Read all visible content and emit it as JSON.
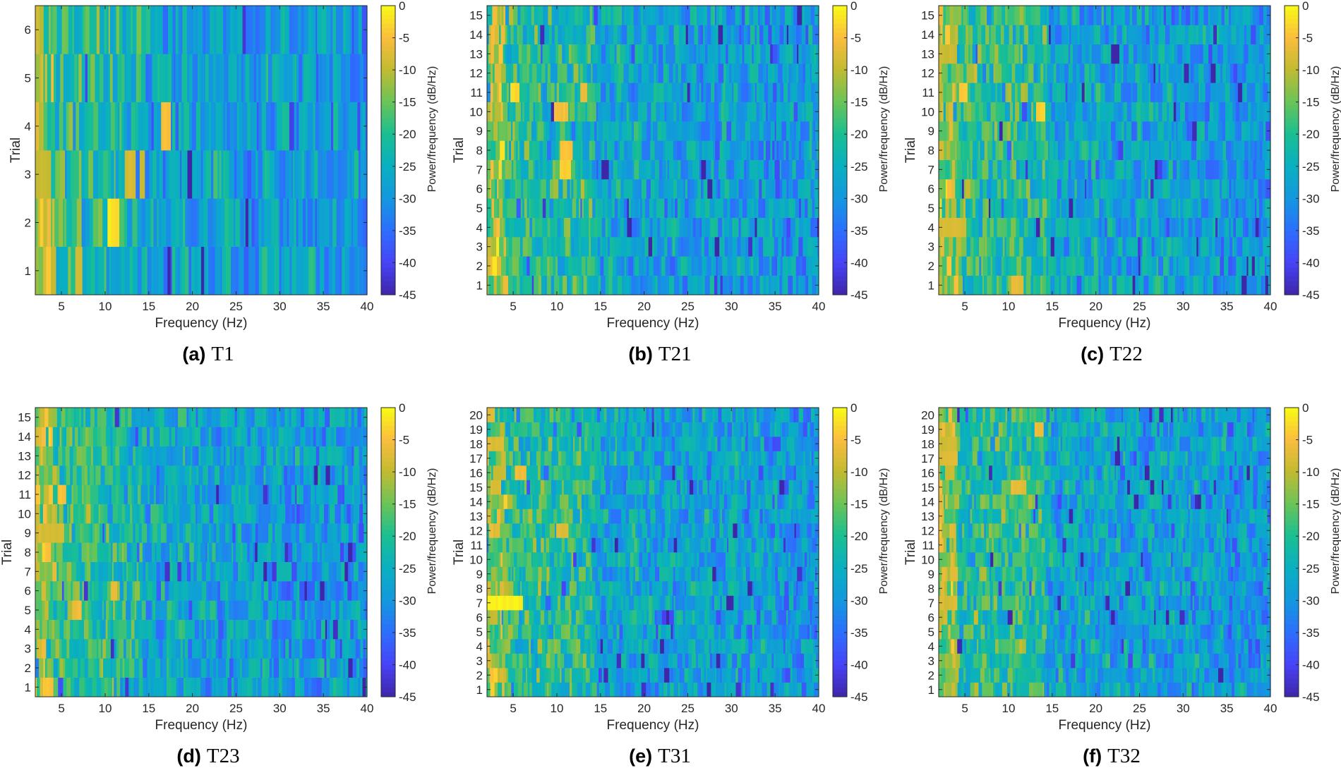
{
  "figure": {
    "colorbar_label": "Power/frequency (dB/Hz)",
    "colorbar_ticks": [
      "0",
      "-5",
      "-10",
      "-15",
      "-20",
      "-25",
      "-30",
      "-35",
      "-40",
      "-45"
    ],
    "colormap_stops": [
      "#3e26a8",
      "#4743f8",
      "#2d6ffe",
      "#1398de",
      "#09b0c1",
      "#19bf92",
      "#6ac457",
      "#c1bb31",
      "#fbbd3d",
      "#f9fb15"
    ]
  },
  "chart_data": [
    {
      "type": "heatmap",
      "panel": "(a)",
      "caption": "T1",
      "xlabel": "Frequency (Hz)",
      "ylabel": "Trial",
      "xlim": [
        2,
        40
      ],
      "xticks": [
        "5",
        "10",
        "15",
        "20",
        "25",
        "30",
        "35",
        "40"
      ],
      "trials": 6,
      "yticks": [
        "1",
        "2",
        "3",
        "4",
        "5",
        "6"
      ],
      "clim": [
        -45,
        0
      ],
      "hotspots": [
        {
          "trial": 3,
          "freq": 2.5,
          "width": 2.5,
          "value": -9
        },
        {
          "trial": 2,
          "freq": 11,
          "width": 0.8,
          "value": -2
        },
        {
          "trial": 4,
          "freq": 16.8,
          "width": 0.6,
          "value": -5
        },
        {
          "trial": 1,
          "freq": 7,
          "width": 0.6,
          "value": -9
        },
        {
          "trial": 3,
          "freq": 13,
          "width": 0.8,
          "value": -8
        }
      ]
    },
    {
      "type": "heatmap",
      "panel": "(b)",
      "caption": "T21",
      "xlabel": "Frequency (Hz)",
      "ylabel": "Trial",
      "xlim": [
        2,
        40
      ],
      "xticks": [
        "5",
        "10",
        "15",
        "20",
        "25",
        "30",
        "35",
        "40"
      ],
      "trials": 15,
      "yticks": [
        "1",
        "2",
        "3",
        "4",
        "5",
        "6",
        "7",
        "8",
        "9",
        "10",
        "11",
        "12",
        "13",
        "14",
        "15"
      ],
      "clim": [
        -45,
        0
      ],
      "hotspots": [
        {
          "trial": 10,
          "freq": 10.5,
          "width": 1.6,
          "value": -5
        },
        {
          "trial": 11,
          "freq": 5.2,
          "width": 0.6,
          "value": -3
        },
        {
          "trial": 7,
          "freq": 11,
          "width": 0.8,
          "value": -4
        },
        {
          "trial": 8,
          "freq": 11,
          "width": 0.8,
          "value": -4
        },
        {
          "trial": 11,
          "freq": 13,
          "width": 0.6,
          "value": -6
        }
      ]
    },
    {
      "type": "heatmap",
      "panel": "(c)",
      "caption": "T22",
      "xlabel": "Frequency (Hz)",
      "ylabel": "Trial",
      "xlim": [
        2,
        40
      ],
      "xticks": [
        "5",
        "10",
        "15",
        "20",
        "25",
        "30",
        "35",
        "40"
      ],
      "trials": 15,
      "yticks": [
        "1",
        "2",
        "3",
        "4",
        "5",
        "6",
        "7",
        "8",
        "9",
        "10",
        "11",
        "12",
        "13",
        "14",
        "15"
      ],
      "clim": [
        -45,
        0
      ],
      "hotspots": [
        {
          "trial": 4,
          "freq": 3.5,
          "width": 3,
          "value": -8
        },
        {
          "trial": 13,
          "freq": 3,
          "width": 2,
          "value": -9
        },
        {
          "trial": 11,
          "freq": 5,
          "width": 0.6,
          "value": -4
        },
        {
          "trial": 1,
          "freq": 11,
          "width": 1.2,
          "value": -7
        },
        {
          "trial": 10,
          "freq": 13.5,
          "width": 0.6,
          "value": -4
        }
      ]
    },
    {
      "type": "heatmap",
      "panel": "(d)",
      "caption": "T23",
      "xlabel": "Frequency (Hz)",
      "ylabel": "Trial",
      "xlim": [
        2,
        40
      ],
      "xticks": [
        "5",
        "10",
        "15",
        "20",
        "25",
        "30",
        "35",
        "40"
      ],
      "trials": 15,
      "yticks": [
        "1",
        "2",
        "3",
        "4",
        "5",
        "6",
        "7",
        "8",
        "9",
        "10",
        "11",
        "12",
        "13",
        "14",
        "15"
      ],
      "clim": [
        -45,
        0
      ],
      "hotspots": [
        {
          "trial": 9,
          "freq": 3.5,
          "width": 3,
          "value": -8
        },
        {
          "trial": 1,
          "freq": 3.5,
          "width": 1,
          "value": -5
        },
        {
          "trial": 11,
          "freq": 5,
          "width": 0.6,
          "value": -5
        },
        {
          "trial": 6,
          "freq": 11,
          "width": 0.6,
          "value": -6
        },
        {
          "trial": 5,
          "freq": 7,
          "width": 0.6,
          "value": -6
        }
      ]
    },
    {
      "type": "heatmap",
      "panel": "(e)",
      "caption": "T31",
      "xlabel": "Frequency (Hz)",
      "ylabel": "Trial",
      "xlim": [
        2,
        40
      ],
      "xticks": [
        "5",
        "10",
        "15",
        "20",
        "25",
        "30",
        "35",
        "40"
      ],
      "trials": 20,
      "yticks": [
        "1",
        "2",
        "3",
        "4",
        "5",
        "6",
        "7",
        "8",
        "9",
        "10",
        "11",
        "12",
        "13",
        "14",
        "15",
        "16",
        "17",
        "18",
        "19",
        "20"
      ],
      "clim": [
        -45,
        0
      ],
      "hotspots": [
        {
          "trial": 7,
          "freq": 4,
          "width": 4,
          "value": -1
        },
        {
          "trial": 18,
          "freq": 3,
          "width": 1.5,
          "value": -8
        },
        {
          "trial": 12,
          "freq": 10.5,
          "width": 1,
          "value": -7
        },
        {
          "trial": 16,
          "freq": 6,
          "width": 1,
          "value": -6
        }
      ]
    },
    {
      "type": "heatmap",
      "panel": "(f)",
      "caption": "T32",
      "xlabel": "Frequency (Hz)",
      "ylabel": "Trial",
      "xlim": [
        2,
        40
      ],
      "xticks": [
        "5",
        "10",
        "15",
        "20",
        "25",
        "30",
        "35",
        "40"
      ],
      "trials": 20,
      "yticks": [
        "1",
        "2",
        "3",
        "4",
        "5",
        "6",
        "7",
        "8",
        "9",
        "10",
        "11",
        "12",
        "13",
        "14",
        "15",
        "16",
        "17",
        "18",
        "19",
        "20"
      ],
      "clim": [
        -45,
        0
      ],
      "hotspots": [
        {
          "trial": 17,
          "freq": 3,
          "width": 2,
          "value": -7
        },
        {
          "trial": 7,
          "freq": 3,
          "width": 2,
          "value": -8
        },
        {
          "trial": 18,
          "freq": 3,
          "width": 2,
          "value": -9
        },
        {
          "trial": 15,
          "freq": 11,
          "width": 1,
          "value": -7
        },
        {
          "trial": 19,
          "freq": 13.5,
          "width": 0.6,
          "value": -6
        }
      ]
    }
  ]
}
